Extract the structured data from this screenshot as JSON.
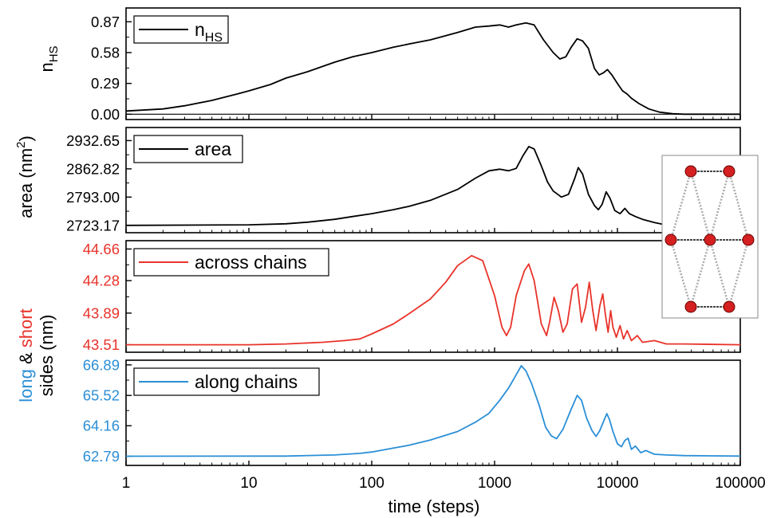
{
  "chart_data": {
    "type": "line",
    "xscale": "log",
    "xlim": [
      1,
      100000
    ],
    "xlabel": "time (steps)",
    "xticks": [
      "1",
      "10",
      "100",
      "1000",
      "10000",
      "100000"
    ],
    "xtick_values": [
      1,
      10,
      100,
      1000,
      10000,
      100000
    ],
    "grid": false,
    "panels": [
      {
        "id": "nhs",
        "ylabel": "n",
        "ylabel_sub": "HS",
        "ylim": [
          -0.05,
          1.0
        ],
        "yticks": [
          "0.87",
          "0.58",
          "0.29",
          "0.00"
        ],
        "ytick_values": [
          0.87,
          0.58,
          0.29,
          0.0
        ],
        "tick_color": "#000000",
        "legend": {
          "label": "n",
          "label_sub": "HS",
          "placement": "top-left"
        },
        "series": [
          {
            "name": "nHS",
            "color": "#000000",
            "points": [
              [
                1,
                0.03
              ],
              [
                2,
                0.05
              ],
              [
                3,
                0.08
              ],
              [
                5,
                0.13
              ],
              [
                8,
                0.19
              ],
              [
                10,
                0.22
              ],
              [
                15,
                0.28
              ],
              [
                20,
                0.34
              ],
              [
                30,
                0.4
              ],
              [
                50,
                0.49
              ],
              [
                70,
                0.54
              ],
              [
                100,
                0.58
              ],
              [
                150,
                0.63
              ],
              [
                200,
                0.66
              ],
              [
                300,
                0.7
              ],
              [
                500,
                0.77
              ],
              [
                700,
                0.82
              ],
              [
                900,
                0.83
              ],
              [
                1100,
                0.84
              ],
              [
                1300,
                0.82
              ],
              [
                1500,
                0.84
              ],
              [
                1800,
                0.86
              ],
              [
                2100,
                0.84
              ],
              [
                2500,
                0.7
              ],
              [
                3000,
                0.58
              ],
              [
                3400,
                0.52
              ],
              [
                3800,
                0.54
              ],
              [
                4200,
                0.63
              ],
              [
                4700,
                0.71
              ],
              [
                5200,
                0.69
              ],
              [
                5800,
                0.62
              ],
              [
                6500,
                0.43
              ],
              [
                7100,
                0.37
              ],
              [
                7700,
                0.39
              ],
              [
                8300,
                0.42
              ],
              [
                9000,
                0.37
              ],
              [
                10000,
                0.29
              ],
              [
                11000,
                0.22
              ],
              [
                12000,
                0.19
              ],
              [
                13000,
                0.15
              ],
              [
                15000,
                0.1
              ],
              [
                18000,
                0.05
              ],
              [
                22000,
                0.02
              ],
              [
                28000,
                0.005
              ],
              [
                35000,
                0.0
              ],
              [
                100000,
                0.0
              ]
            ]
          }
        ]
      },
      {
        "id": "area",
        "ylabel": "area (nm",
        "ylabel_sup": "2",
        "ylabel_tail": ")",
        "ylim": [
          2705,
          2965
        ],
        "yticks": [
          "2932.65",
          "2862.82",
          "2793.00",
          "2723.17"
        ],
        "ytick_values": [
          2932.65,
          2862.82,
          2793.0,
          2723.17
        ],
        "tick_color": "#000000",
        "legend": {
          "label": "area",
          "placement": "top-left"
        },
        "series": [
          {
            "name": "area",
            "color": "#000000",
            "points": [
              [
                1,
                2723.2
              ],
              [
                10,
                2724.5
              ],
              [
                20,
                2727
              ],
              [
                30,
                2731
              ],
              [
                50,
                2738
              ],
              [
                70,
                2745
              ],
              [
                100,
                2752
              ],
              [
                150,
                2762
              ],
              [
                200,
                2770
              ],
              [
                300,
                2785
              ],
              [
                500,
                2812
              ],
              [
                700,
                2840
              ],
              [
                900,
                2858
              ],
              [
                1100,
                2862
              ],
              [
                1300,
                2858
              ],
              [
                1500,
                2864
              ],
              [
                1700,
                2895
              ],
              [
                1900,
                2918
              ],
              [
                2100,
                2912
              ],
              [
                2400,
                2870
              ],
              [
                2700,
                2830
              ],
              [
                3000,
                2808
              ],
              [
                3500,
                2793
              ],
              [
                4000,
                2800
              ],
              [
                4500,
                2840
              ],
              [
                4800,
                2866
              ],
              [
                5200,
                2850
              ],
              [
                5800,
                2800
              ],
              [
                6500,
                2772
              ],
              [
                7000,
                2762
              ],
              [
                7500,
                2775
              ],
              [
                8100,
                2806
              ],
              [
                8700,
                2790
              ],
              [
                9500,
                2760
              ],
              [
                10500,
                2752
              ],
              [
                11500,
                2765
              ],
              [
                12500,
                2752
              ],
              [
                14000,
                2745
              ],
              [
                16000,
                2738
              ],
              [
                20000,
                2730
              ],
              [
                25000,
                2724
              ],
              [
                30000,
                2722
              ]
            ]
          }
        ]
      },
      {
        "id": "across",
        "ylim": [
          43.42,
          44.76
        ],
        "yticks": [
          "44.66",
          "44.28",
          "43.89",
          "43.51"
        ],
        "ytick_values": [
          44.66,
          44.28,
          43.89,
          43.51
        ],
        "tick_color": "#e8332a",
        "legend": {
          "label": "across chains",
          "placement": "top-left"
        },
        "series": [
          {
            "name": "across chains",
            "color": "#e8332a",
            "points": [
              [
                1,
                43.51
              ],
              [
                10,
                43.51
              ],
              [
                20,
                43.52
              ],
              [
                40,
                43.54
              ],
              [
                60,
                43.56
              ],
              [
                80,
                43.58
              ],
              [
                100,
                43.64
              ],
              [
                150,
                43.76
              ],
              [
                200,
                43.88
              ],
              [
                300,
                44.06
              ],
              [
                400,
                44.26
              ],
              [
                500,
                44.46
              ],
              [
                650,
                44.58
              ],
              [
                800,
                44.52
              ],
              [
                1000,
                44.1
              ],
              [
                1150,
                43.72
              ],
              [
                1250,
                43.62
              ],
              [
                1350,
                43.72
              ],
              [
                1500,
                44.1
              ],
              [
                1750,
                44.4
              ],
              [
                1900,
                44.48
              ],
              [
                2100,
                44.28
              ],
              [
                2400,
                43.76
              ],
              [
                2650,
                43.62
              ],
              [
                2800,
                43.78
              ],
              [
                3050,
                44.08
              ],
              [
                3300,
                43.92
              ],
              [
                3600,
                43.66
              ],
              [
                3900,
                43.76
              ],
              [
                4300,
                44.18
              ],
              [
                4700,
                44.24
              ],
              [
                5100,
                43.78
              ],
              [
                5500,
                43.96
              ],
              [
                5900,
                44.26
              ],
              [
                6300,
                43.92
              ],
              [
                6700,
                43.68
              ],
              [
                7200,
                43.98
              ],
              [
                7600,
                44.12
              ],
              [
                8000,
                43.86
              ],
              [
                8400,
                43.66
              ],
              [
                8800,
                43.92
              ],
              [
                9200,
                43.72
              ],
              [
                9800,
                43.6
              ],
              [
                10500,
                43.74
              ],
              [
                11200,
                43.58
              ],
              [
                12000,
                43.68
              ],
              [
                13000,
                43.56
              ],
              [
                14500,
                43.62
              ],
              [
                16000,
                43.54
              ],
              [
                20000,
                43.56
              ],
              [
                25000,
                43.52
              ],
              [
                35000,
                43.52
              ],
              [
                100000,
                43.51
              ]
            ]
          }
        ]
      },
      {
        "id": "along",
        "ylim": [
          62.38,
          67.1
        ],
        "yticks": [
          "66.89",
          "65.52",
          "64.16",
          "62.79"
        ],
        "ytick_values": [
          66.89,
          65.52,
          64.16,
          62.79
        ],
        "tick_color": "#2b8fd6",
        "legend": {
          "label": "along chains",
          "placement": "top-left"
        },
        "series": [
          {
            "name": "along chains",
            "color": "#2b8fd6",
            "points": [
              [
                1,
                62.79
              ],
              [
                20,
                62.8
              ],
              [
                50,
                62.85
              ],
              [
                80,
                62.92
              ],
              [
                100,
                62.98
              ],
              [
                150,
                63.16
              ],
              [
                200,
                63.28
              ],
              [
                300,
                63.52
              ],
              [
                500,
                63.9
              ],
              [
                700,
                64.32
              ],
              [
                900,
                64.72
              ],
              [
                1100,
                65.3
              ],
              [
                1300,
                65.85
              ],
              [
                1500,
                66.45
              ],
              [
                1650,
                66.85
              ],
              [
                1800,
                66.62
              ],
              [
                2000,
                66.05
              ],
              [
                2300,
                65.1
              ],
              [
                2600,
                64.1
              ],
              [
                2900,
                63.7
              ],
              [
                3200,
                63.58
              ],
              [
                3600,
                64.0
              ],
              [
                4200,
                64.9
              ],
              [
                4700,
                65.52
              ],
              [
                5100,
                65.3
              ],
              [
                5600,
                64.52
              ],
              [
                6200,
                63.95
              ],
              [
                6700,
                63.68
              ],
              [
                7200,
                63.95
              ],
              [
                7800,
                64.42
              ],
              [
                8200,
                64.7
              ],
              [
                8600,
                64.45
              ],
              [
                9200,
                63.9
              ],
              [
                10000,
                63.35
              ],
              [
                10800,
                63.22
              ],
              [
                11500,
                63.5
              ],
              [
                12200,
                63.6
              ],
              [
                13000,
                63.1
              ],
              [
                14000,
                63.25
              ],
              [
                15500,
                62.95
              ],
              [
                17000,
                63.05
              ],
              [
                20000,
                62.88
              ],
              [
                25000,
                62.85
              ],
              [
                35000,
                62.82
              ],
              [
                100000,
                62.8
              ]
            ]
          }
        ]
      }
    ],
    "shared_ylabel": {
      "words": [
        {
          "text": "long",
          "color": "#2b8fd6"
        },
        {
          "text": " & ",
          "color": "#000000"
        },
        {
          "text": "short",
          "color": "#e8332a"
        }
      ],
      "second_line": "sides (nm)"
    }
  }
}
